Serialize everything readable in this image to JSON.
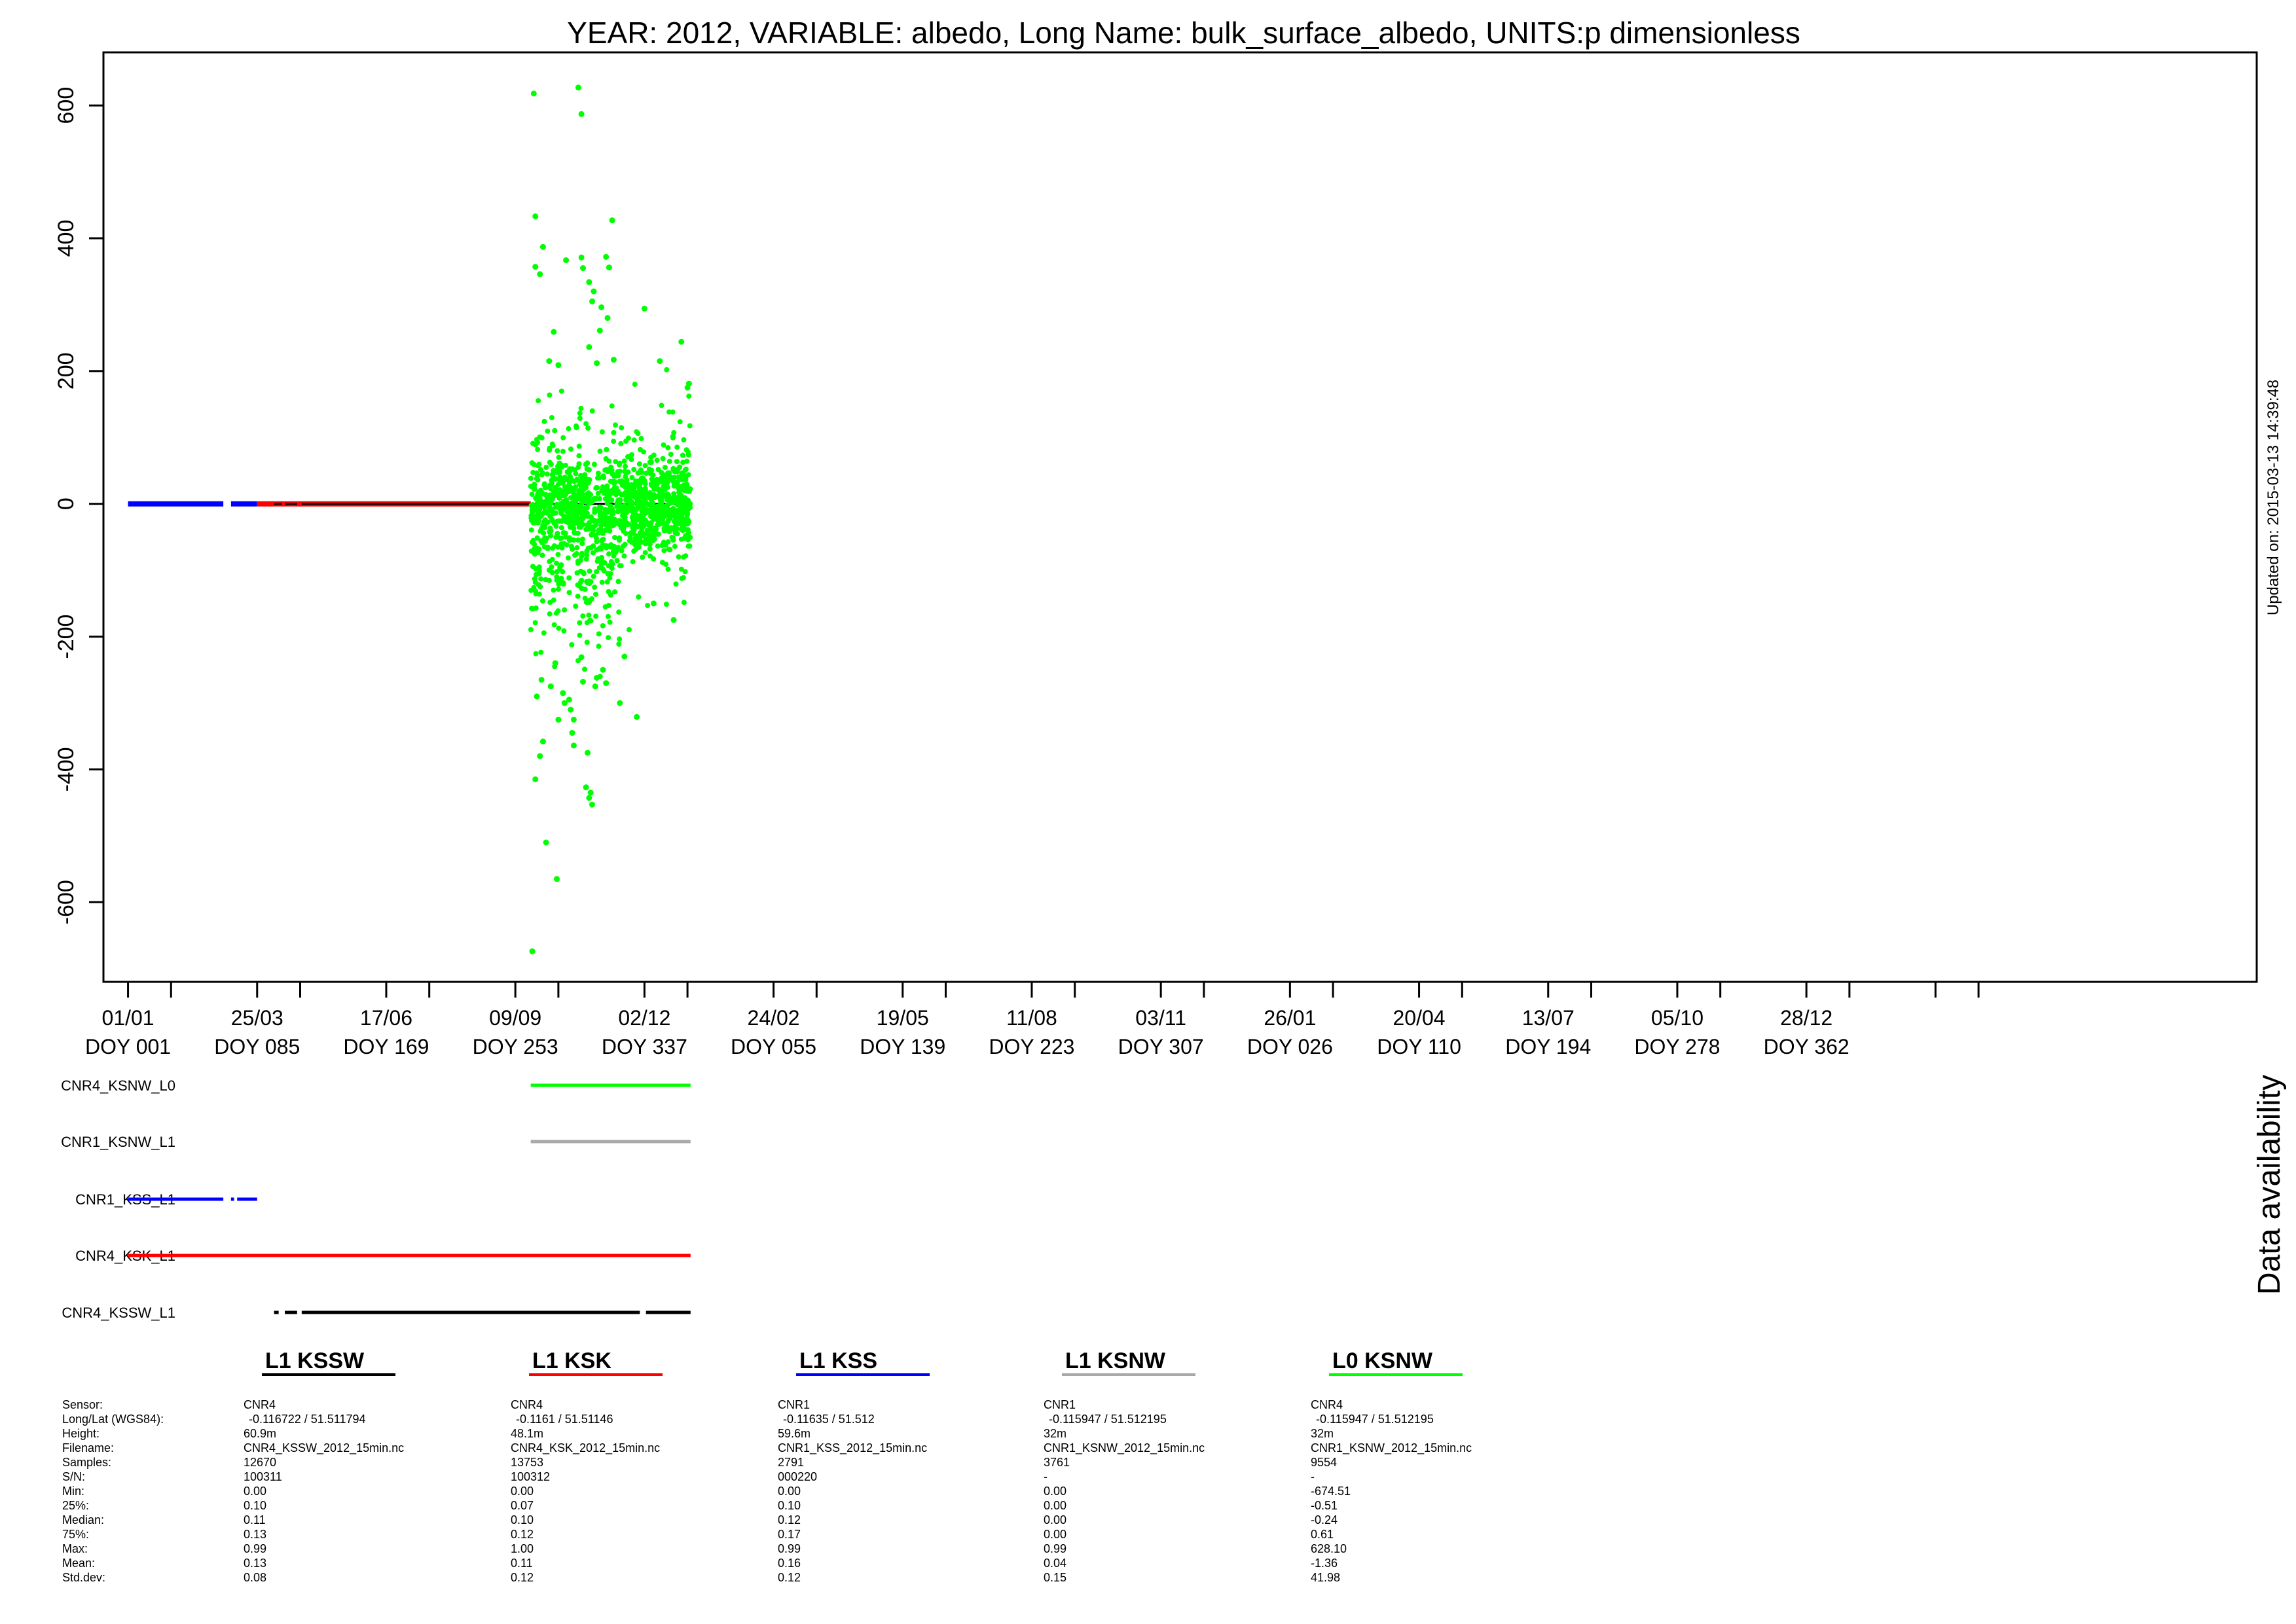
{
  "title": "YEAR: 2012, VARIABLE: albedo, Long Name: bulk_surface_albedo, UNITS:p dimensionless",
  "updated_label": "Updated on: 2015-03-13 14:39:48",
  "availability_label": "Data availability",
  "chart_data": {
    "type": "scatter",
    "title": "YEAR: 2012, VARIABLE: albedo, Long Name: bulk_surface_albedo, UNITS:p dimensionless",
    "xlabel": "",
    "ylabel": "",
    "ylim": [
      -720,
      680
    ],
    "y_ticks": [
      600,
      400,
      200,
      0,
      -200,
      -400,
      -600
    ],
    "y_tick_labels": [
      "600",
      "400",
      "200",
      "0",
      "-200",
      "-400",
      "-600"
    ],
    "x_axis": {
      "units": "days since start of 2012",
      "xlim": [
        -16,
        1385
      ],
      "major_ticks": [
        0,
        84,
        168,
        252,
        336,
        420,
        504,
        588,
        672,
        756,
        840,
        924,
        1008,
        1092,
        1176
      ],
      "minor_ticks": [
        28,
        112,
        196,
        280,
        364,
        448,
        532,
        616,
        700,
        784,
        868,
        952,
        1036,
        1120,
        1204
      ],
      "tick_labels_date": [
        "01/01",
        "25/03",
        "17/06",
        "09/09",
        "02/12",
        "24/02",
        "19/05",
        "11/08",
        "03/11",
        "26/01",
        "20/04",
        "13/07",
        "05/10",
        "28/12",
        ""
      ],
      "tick_labels_doy": [
        "DOY 001",
        "DOY 085",
        "DOY 169",
        "DOY 253",
        "DOY 337",
        "DOY 055",
        "DOY 139",
        "DOY 223",
        "DOY 307",
        "DOY 026",
        "DOY 110",
        "DOY 194",
        "DOY 278",
        "DOY 362",
        ""
      ]
    },
    "series": [
      {
        "name": "L1 KSS",
        "color": "#0000ff",
        "kind": "line",
        "segments": [
          [
            0,
            62
          ],
          [
            67,
            84
          ]
        ],
        "y": 0
      },
      {
        "name": "L1 KSK",
        "color": "#ff0000",
        "kind": "line",
        "segments": [
          [
            84,
            262
          ]
        ],
        "y": 0
      },
      {
        "name": "L0 KSNW",
        "color": "#00ff00",
        "kind": "scatter",
        "x_range": [
          262,
          366
        ],
        "outliers": [
          [
            264,
            618
          ],
          [
            293,
            627
          ],
          [
            295,
            587
          ],
          [
            265,
            433
          ],
          [
            270,
            387
          ],
          [
            265,
            357
          ],
          [
            268,
            346
          ],
          [
            277,
            259
          ],
          [
            285,
            367
          ],
          [
            295,
            371
          ],
          [
            296,
            355
          ],
          [
            300,
            334
          ],
          [
            302,
            305
          ],
          [
            303,
            320
          ],
          [
            308,
            296
          ],
          [
            311,
            372
          ],
          [
            313,
            356
          ],
          [
            312,
            280
          ],
          [
            315,
            427
          ],
          [
            307,
            261
          ],
          [
            300,
            236
          ],
          [
            336,
            294
          ],
          [
            360,
            244
          ],
          [
            365,
            181
          ],
          [
            364,
            175
          ],
          [
            346,
            215
          ],
          [
            274,
            215
          ],
          [
            316,
            217
          ],
          [
            305,
            212
          ],
          [
            280,
            209
          ],
          [
            265,
            -415
          ],
          [
            270,
            -358
          ],
          [
            272,
            -510
          ],
          [
            279,
            -565
          ],
          [
            268,
            -380
          ],
          [
            290,
            -325
          ],
          [
            298,
            -427
          ],
          [
            300,
            -443
          ],
          [
            302,
            -453
          ],
          [
            301,
            -435
          ],
          [
            299,
            -375
          ],
          [
            290,
            -364
          ],
          [
            289,
            -345
          ],
          [
            288,
            -310
          ],
          [
            287,
            -295
          ],
          [
            284,
            -300
          ],
          [
            275,
            -275
          ],
          [
            278,
            -240
          ],
          [
            283,
            -285
          ],
          [
            263,
            -674
          ],
          [
            320,
            -300
          ],
          [
            331,
            -321
          ],
          [
            311,
            -270
          ],
          [
            305,
            -262
          ],
          [
            309,
            -250
          ],
          [
            296,
            -268
          ],
          [
            295,
            -231
          ],
          [
            304,
            -275
          ],
          [
            355,
            -175
          ],
          [
            342,
            -150
          ],
          [
            266,
            -290
          ],
          [
            269,
            -265
          ],
          [
            280,
            -325
          ],
          [
            323,
            -230
          ]
        ]
      },
      {
        "name": "L1 KSNW",
        "color": "#a9a9a9",
        "kind": "line",
        "segments": [
          [
            262,
            366
          ]
        ],
        "y": 0
      },
      {
        "name": "L1 KSSW",
        "color": "#000000",
        "kind": "line",
        "segments": [
          [
            95,
            100
          ],
          [
            102,
            110
          ],
          [
            113,
            334
          ],
          [
            337,
            366
          ]
        ],
        "y": 0
      }
    ]
  },
  "availability": {
    "rows": [
      {
        "label": "CNR4_KSNW_L0",
        "color": "#00ff00",
        "segments": [
          [
            262,
            366
          ]
        ]
      },
      {
        "label": "CNR1_KSNW_L1",
        "color": "#a9a9a9",
        "segments": [
          [
            262,
            366
          ]
        ]
      },
      {
        "label": "CNR1_KSS_L1",
        "color": "#0000ff",
        "segments": [
          [
            0,
            62
          ],
          [
            67,
            69
          ],
          [
            71,
            84
          ]
        ]
      },
      {
        "label": "CNR4_KSK_L1",
        "color": "#ff0000",
        "segments": [
          [
            0,
            366
          ]
        ]
      },
      {
        "label": "CNR4_KSSW_L1",
        "color": "#000000",
        "segments": [
          [
            95,
            98
          ],
          [
            102,
            110
          ],
          [
            113,
            333
          ],
          [
            337,
            366
          ]
        ]
      }
    ]
  },
  "stats": {
    "row_labels": [
      "Sensor:",
      "Long/Lat (WGS84):",
      "Height:",
      "Filename:",
      "Samples:",
      "S/N:",
      "Min:",
      "25%:",
      "Median:",
      "75%:",
      "Max:",
      "Mean:",
      "Std.dev:"
    ],
    "columns": [
      {
        "header": "L1 KSSW",
        "color": "#000000",
        "values": [
          "CNR4",
          "-0.116722 / 51.511794",
          "60.9m",
          "CNR4_KSSW_2012_15min.nc",
          "12670",
          "100311",
          "0.00",
          "0.10",
          "0.11",
          "0.13",
          "0.99",
          "0.13",
          "0.08"
        ]
      },
      {
        "header": "L1 KSK",
        "color": "#ff0000",
        "values": [
          "CNR4",
          "-0.1161 / 51.51146",
          "48.1m",
          "CNR4_KSK_2012_15min.nc",
          "13753",
          "100312",
          "0.00",
          "0.07",
          "0.10",
          "0.12",
          "1.00",
          "0.11",
          "0.12"
        ]
      },
      {
        "header": "L1 KSS",
        "color": "#0000ff",
        "values": [
          "CNR1",
          "-0.11635 / 51.512",
          "59.6m",
          "CNR1_KSS_2012_15min.nc",
          "2791",
          "000220",
          "0.00",
          "0.10",
          "0.12",
          "0.17",
          "0.99",
          "0.16",
          "0.12"
        ]
      },
      {
        "header": "L1 KSNW",
        "color": "#a9a9a9",
        "values": [
          "CNR1",
          "-0.115947 / 51.512195",
          "32m",
          "CNR1_KSNW_2012_15min.nc",
          "3761",
          "-",
          "0.00",
          "0.00",
          "0.00",
          "0.00",
          "0.99",
          "0.04",
          "0.15"
        ]
      },
      {
        "header": "L0 KSNW",
        "color": "#00ff00",
        "values": [
          "CNR4",
          "-0.115947 / 51.512195",
          "32m",
          "CNR1_KSNW_2012_15min.nc",
          "9554",
          "-",
          "-674.51",
          "-0.51",
          "-0.24",
          "0.61",
          "628.10",
          "-1.36",
          "41.98"
        ]
      }
    ]
  }
}
